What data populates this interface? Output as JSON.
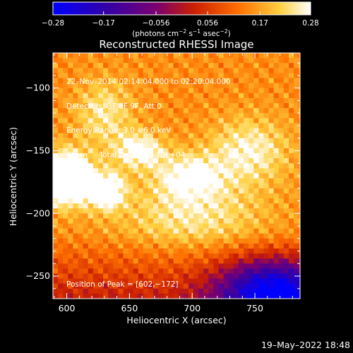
{
  "chart_data": {
    "type": "heatmap",
    "title": "Reconstructed RHESSI Image",
    "xlabel": "Heliocentric X (arcsec)",
    "ylabel": "Heliocentric Y (arcsec)",
    "xlim": [
      589,
      786
    ],
    "ylim": [
      -268,
      -72
    ],
    "x_ticks": [
      600,
      650,
      700,
      750
    ],
    "x_tick_labels": [
      "600",
      "650",
      "700",
      "750"
    ],
    "y_ticks": [
      -100,
      -150,
      -200,
      -250
    ],
    "y_tick_labels": [
      "−100",
      "−150",
      "−200",
      "−250"
    ],
    "colorbar": {
      "range": [
        -0.28,
        0.28
      ],
      "ticks": [
        -0.28,
        -0.17,
        -0.056,
        0.056,
        0.17,
        0.28
      ],
      "tick_labels": [
        "−0.28",
        "−0.17",
        "−0.056",
        "0.056",
        "0.17",
        "0.28"
      ],
      "unit_parts": [
        "(photons cm",
        "−2",
        " s",
        "−1",
        " asec",
        "−2",
        ")"
      ]
    },
    "annotations": {
      "time_range": "22–Nov–2014 02:14:04.000 to 02:20:04.000",
      "detectors": "Detectors: 3F 6F 9F, Att 0",
      "energy": "Energy Range: 3.0 – 6.0 keV",
      "clean_label": "Clean",
      "total_counts": "Total counts: 6.70E+04",
      "peak": "Position of Peak = [602,−172]"
    },
    "peak": {
      "x": 602,
      "y": -172
    },
    "blobs": [
      {
        "x": 600,
        "y": -172,
        "sx": 14,
        "sy": 14,
        "a": 0.3
      },
      {
        "x": 632,
        "y": -182,
        "sx": 10,
        "sy": 10,
        "a": 0.2
      },
      {
        "x": 658,
        "y": -150,
        "sx": 14,
        "sy": 10,
        "a": 0.15
      },
      {
        "x": 698,
        "y": -170,
        "sx": 18,
        "sy": 12,
        "a": 0.14
      },
      {
        "x": 745,
        "y": -150,
        "sx": 22,
        "sy": 18,
        "a": 0.12
      },
      {
        "x": 630,
        "y": -120,
        "sx": 16,
        "sy": 18,
        "a": 0.1
      },
      {
        "x": 700,
        "y": -200,
        "sx": 40,
        "sy": 20,
        "a": 0.1
      }
    ],
    "background": 0.15,
    "dark_region": {
      "x": 765,
      "y": -262,
      "sx": 30,
      "sy": 18,
      "a": -0.35
    }
  },
  "timestamp": "19–May–2022 18:48"
}
